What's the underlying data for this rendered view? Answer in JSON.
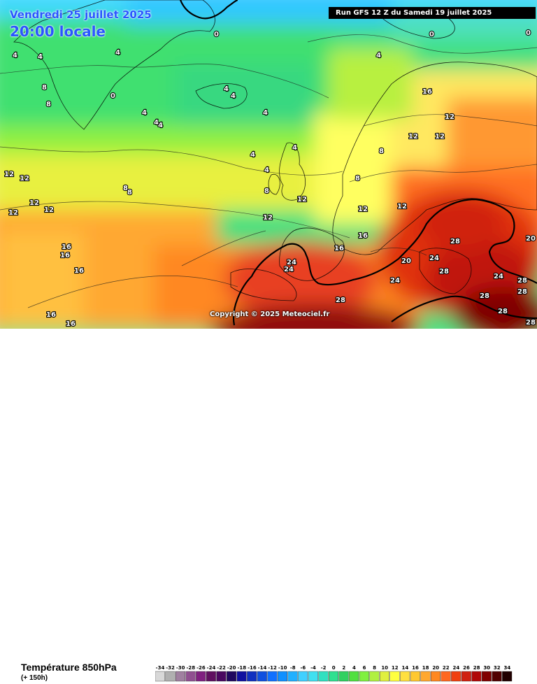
{
  "header": {
    "date": "Vendredi 25 juillet 2025",
    "time": "20:00 locale",
    "run": "Run GFS 12 Z du Samedi 19 juillet 2025"
  },
  "copyright": "Copyright © 2025 Meteociel.fr",
  "footer": {
    "variable": "Température 850hPa",
    "lead": "(+ 150h)"
  },
  "legend": {
    "ticks": [
      "-34",
      "-32",
      "-30",
      "-28",
      "-26",
      "-24",
      "-22",
      "-20",
      "-18",
      "-16",
      "-14",
      "-12",
      "-10",
      "-8",
      "-6",
      "-4",
      "-2",
      "0",
      "2",
      "4",
      "6",
      "8",
      "10",
      "12",
      "14",
      "16",
      "18",
      "20",
      "22",
      "24",
      "26",
      "28",
      "30",
      "32",
      "34"
    ],
    "colors": [
      "#d8d8d8",
      "#b0b0b0",
      "#a080a0",
      "#905090",
      "#802080",
      "#601060",
      "#4a0860",
      "#200860",
      "#1010a0",
      "#1030c0",
      "#1050e0",
      "#1070ff",
      "#1090ff",
      "#20b0ff",
      "#40d0ff",
      "#40e0f0",
      "#30e0c0",
      "#30e090",
      "#30d060",
      "#50e040",
      "#80f040",
      "#b0f040",
      "#e0f040",
      "#ffff40",
      "#ffe040",
      "#ffc830",
      "#ffa830",
      "#ff8820",
      "#ff6820",
      "#f04010",
      "#d02010",
      "#b00808",
      "#800000",
      "#500000",
      "#200000"
    ]
  },
  "map_labels": [
    {
      "t": "0"
    },
    {
      "t": "0"
    },
    {
      "t": "0"
    },
    {
      "t": "0"
    },
    {
      "t": "4"
    },
    {
      "t": "4"
    },
    {
      "t": "4"
    },
    {
      "t": "4"
    },
    {
      "t": "4"
    },
    {
      "t": "4"
    },
    {
      "t": "4"
    },
    {
      "t": "4"
    },
    {
      "t": "4"
    },
    {
      "t": "4"
    },
    {
      "t": "4"
    },
    {
      "t": "4"
    },
    {
      "t": "4"
    },
    {
      "t": "8"
    },
    {
      "t": "8"
    },
    {
      "t": "8"
    },
    {
      "t": "8"
    },
    {
      "t": "8"
    },
    {
      "t": "8"
    },
    {
      "t": "8"
    },
    {
      "t": "12"
    },
    {
      "t": "12"
    },
    {
      "t": "12"
    },
    {
      "t": "12"
    },
    {
      "t": "12"
    },
    {
      "t": "12"
    },
    {
      "t": "12"
    },
    {
      "t": "12"
    },
    {
      "t": "12"
    },
    {
      "t": "12"
    },
    {
      "t": "12"
    },
    {
      "t": "12"
    },
    {
      "t": "16"
    },
    {
      "t": "16"
    },
    {
      "t": "16"
    },
    {
      "t": "16"
    },
    {
      "t": "16"
    },
    {
      "t": "16"
    },
    {
      "t": "16"
    },
    {
      "t": "16"
    },
    {
      "t": "20"
    },
    {
      "t": "20"
    },
    {
      "t": "24"
    },
    {
      "t": "24"
    },
    {
      "t": "24"
    },
    {
      "t": "24"
    },
    {
      "t": "24"
    },
    {
      "t": "28"
    },
    {
      "t": "28"
    },
    {
      "t": "28"
    },
    {
      "t": "28"
    },
    {
      "t": "28"
    },
    {
      "t": "28"
    },
    {
      "t": "28"
    },
    {
      "t": "28"
    }
  ]
}
